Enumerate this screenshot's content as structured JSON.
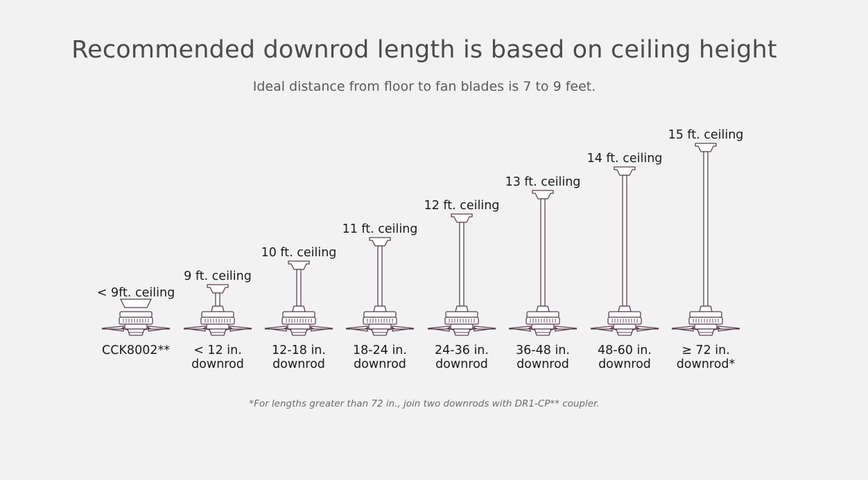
{
  "title": "Recommended downrod length is based on ceiling height",
  "subtitle": "Ideal distance from floor to fan blades is 7 to 9 feet.",
  "footnote": "*For lengths greater than 72 in., join two downrods with DR1-CP** coupler.",
  "colors": {
    "line": "#5a3f4e",
    "fill": "#ffffff",
    "text": "#1a1a1a"
  },
  "fans": [
    {
      "ceiling": "< 9ft. ceiling",
      "caption": [
        "CCK8002**"
      ],
      "downrod": 0
    },
    {
      "ceiling": "9 ft. ceiling",
      "caption": [
        "< 12 in.",
        "downrod"
      ],
      "downrod": 1
    },
    {
      "ceiling": "10 ft. ceiling",
      "caption": [
        "12-18 in.",
        "downrod"
      ],
      "downrod": 2
    },
    {
      "ceiling": "11 ft. ceiling",
      "caption": [
        "18-24 in.",
        "downrod"
      ],
      "downrod": 3
    },
    {
      "ceiling": "12 ft. ceiling",
      "caption": [
        "24-36 in.",
        "downrod"
      ],
      "downrod": 4
    },
    {
      "ceiling": "13 ft. ceiling",
      "caption": [
        "36-48 in.",
        "downrod"
      ],
      "downrod": 5
    },
    {
      "ceiling": "14 ft. ceiling",
      "caption": [
        "48-60 in.",
        "downrod"
      ],
      "downrod": 6
    },
    {
      "ceiling": "15 ft. ceiling",
      "caption": [
        "≥ 72 in.",
        "downrod*"
      ],
      "downrod": 7
    }
  ]
}
